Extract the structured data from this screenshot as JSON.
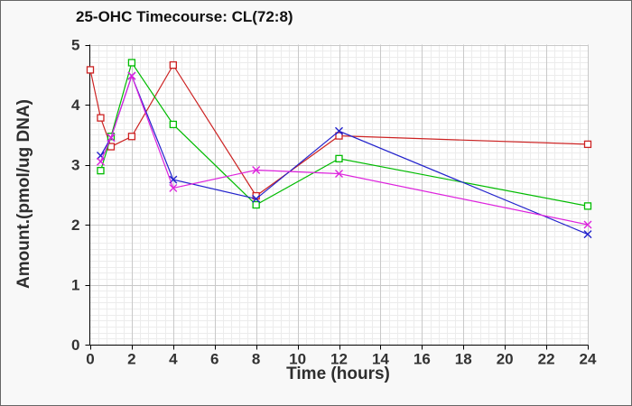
{
  "chart_data": {
    "type": "line",
    "title": "25-OHC Timecourse: CL(72:8)",
    "xlabel": "Time (hours)",
    "ylabel": "Amount.(pmol/ug DNA)",
    "xlim": [
      0,
      24
    ],
    "ylim": [
      0,
      5
    ],
    "x_ticks": [
      0,
      2,
      4,
      6,
      8,
      10,
      12,
      14,
      16,
      18,
      20,
      22,
      24
    ],
    "y_ticks": [
      0,
      1,
      2,
      3,
      4,
      5
    ],
    "grid": {
      "major": true,
      "minor": true
    },
    "legend": "none",
    "series": [
      {
        "name": "red-squares",
        "color": "#cc2222",
        "marker": "open-square",
        "x": [
          0,
          0.5,
          1,
          2,
          4,
          8,
          12,
          24
        ],
        "y": [
          4.58,
          3.78,
          3.3,
          3.47,
          4.66,
          2.48,
          3.48,
          3.34
        ]
      },
      {
        "name": "green-squares",
        "color": "#00bb00",
        "marker": "open-square",
        "x": [
          0.5,
          1,
          2,
          4,
          8,
          12,
          24
        ],
        "y": [
          2.9,
          3.47,
          4.7,
          3.67,
          2.33,
          3.1,
          2.31
        ]
      },
      {
        "name": "blue-crosses",
        "color": "#2222cc",
        "marker": "x",
        "x": [
          0.5,
          1,
          2,
          4,
          8,
          12,
          24
        ],
        "y": [
          3.15,
          3.45,
          4.48,
          2.75,
          2.43,
          3.56,
          1.84
        ]
      },
      {
        "name": "magenta-crosses",
        "color": "#dd22dd",
        "marker": "x",
        "x": [
          0.5,
          1,
          2,
          4,
          8,
          12,
          24
        ],
        "y": [
          3.05,
          3.45,
          4.48,
          2.61,
          2.91,
          2.85,
          2.0
        ]
      }
    ],
    "colors": {
      "figure_bg": "#f8f8f8",
      "plot_bg": "#ffffff",
      "border": "#666666",
      "axis": "#000000",
      "grid_major": "#c9c9c9",
      "grid_minor": "#ececec",
      "tick_label": "#333333",
      "title": "#111111"
    }
  }
}
